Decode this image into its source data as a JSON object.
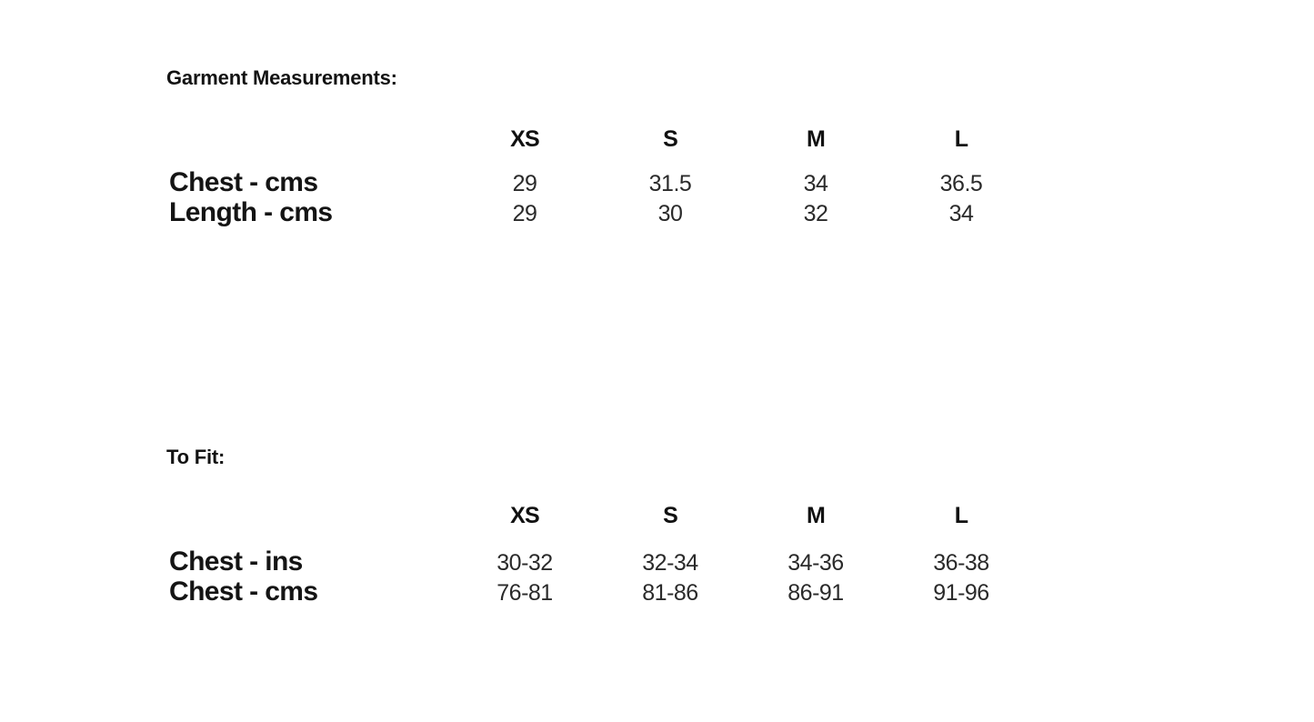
{
  "page": {
    "background_color": "#ffffff",
    "label_color": "#141414",
    "value_color": "#2a2a2a"
  },
  "sections": [
    {
      "title": "Garment Measurements:",
      "sizes": [
        "XS",
        "S",
        "M",
        "L"
      ],
      "rows": [
        {
          "label": "Chest - cms",
          "values": [
            "29",
            "31.5",
            "34",
            "36.5"
          ]
        },
        {
          "label": "Length - cms",
          "values": [
            "29",
            "30",
            "32",
            "34"
          ]
        }
      ]
    },
    {
      "title": "To Fit:",
      "sizes": [
        "XS",
        "S",
        "M",
        "L"
      ],
      "rows": [
        {
          "label": "Chest - ins",
          "values": [
            "30-32",
            "32-34",
            "34-36",
            "36-38"
          ]
        },
        {
          "label": "Chest - cms",
          "values": [
            "76-81",
            "81-86",
            "86-91",
            "91-96"
          ]
        }
      ]
    }
  ]
}
